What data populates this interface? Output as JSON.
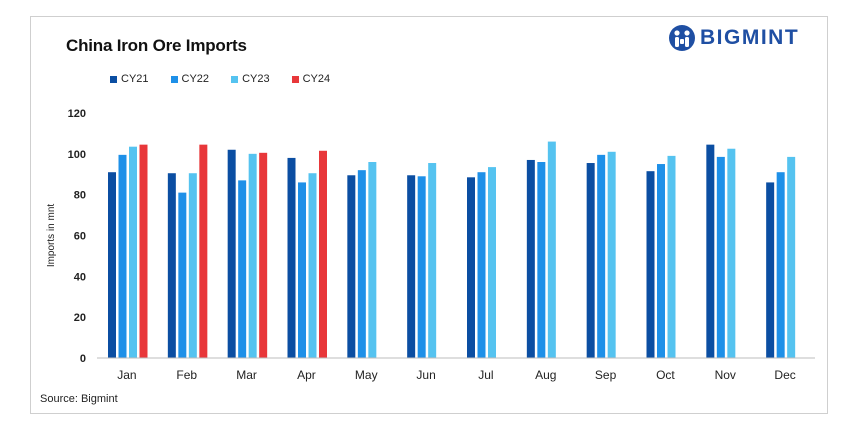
{
  "title": "China Iron Ore Imports",
  "source": "Source: Bigmint",
  "logo": {
    "text": "BIGMINT",
    "icon": "bigmint-logo-icon",
    "color": "#1f4fa3"
  },
  "chart_data": {
    "type": "bar",
    "title": "China Iron Ore Imports",
    "ylabel": "Imports in mnt",
    "xlabel": "",
    "ylim": [
      0,
      120
    ],
    "yticks": [
      0,
      20,
      40,
      60,
      80,
      100,
      120
    ],
    "grid": false,
    "legend_position": "top-left",
    "categories": [
      "Jan",
      "Feb",
      "Mar",
      "Apr",
      "May",
      "Jun",
      "Jul",
      "Aug",
      "Sep",
      "Oct",
      "Nov",
      "Dec"
    ],
    "series": [
      {
        "name": "CY21",
        "color": "#0b4ea2",
        "values": [
          91,
          90.5,
          102,
          98,
          89.5,
          89.5,
          88.5,
          97,
          95.5,
          91.5,
          104.5,
          86
        ]
      },
      {
        "name": "CY22",
        "color": "#1e90e8",
        "values": [
          99.5,
          81,
          87,
          86,
          92,
          89,
          91,
          96,
          99.5,
          95,
          98.5,
          91
        ]
      },
      {
        "name": "CY23",
        "color": "#55c3f0",
        "values": [
          103.5,
          90.5,
          100,
          90.5,
          96,
          95.5,
          93.5,
          106,
          101,
          99,
          102.5,
          98.5
        ]
      },
      {
        "name": "CY24",
        "color": "#e8373a",
        "values": [
          104.5,
          104.5,
          100.5,
          101.5,
          null,
          null,
          null,
          null,
          null,
          null,
          null,
          null
        ]
      }
    ]
  }
}
